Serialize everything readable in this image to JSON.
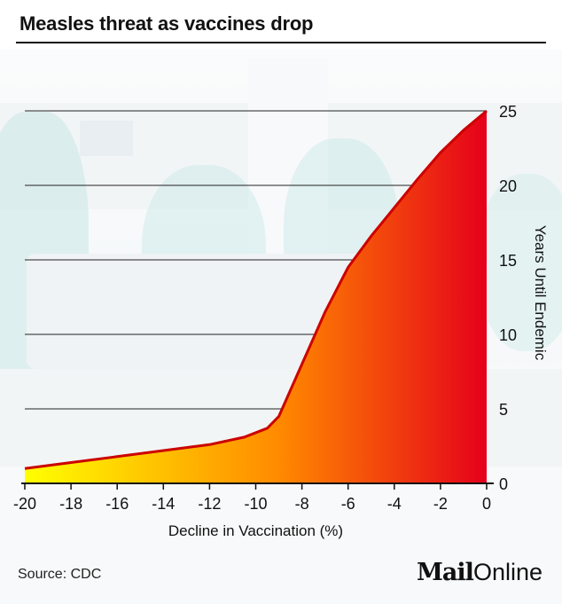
{
  "title": "Measles threat as vaccines drop",
  "source": "Source: CDC",
  "brand": {
    "mail": "Mail",
    "online": "Online"
  },
  "colors": {
    "gradient_start": "#ffff00",
    "gradient_mid": "#ff8a00",
    "gradient_end": "#e5001a",
    "line": "#cc0000"
  },
  "chart_data": {
    "type": "area",
    "xlabel": "Decline in Vaccination (%)",
    "ylabel": "Years Until Endemic",
    "xlim": [
      -20,
      0
    ],
    "ylim": [
      0,
      25
    ],
    "x_ticks": [
      -20,
      -18,
      -16,
      -14,
      -12,
      -10,
      -8,
      -6,
      -4,
      -2,
      0
    ],
    "y_ticks": [
      0,
      5,
      10,
      15,
      20,
      25
    ],
    "y_axis_side": "right",
    "grid": "horizontal",
    "x": [
      -20,
      -18,
      -16,
      -14,
      -12,
      -10.5,
      -9.5,
      -9,
      -8,
      -7,
      -6,
      -5,
      -4,
      -3,
      -2,
      -1,
      0
    ],
    "y": [
      1.0,
      1.4,
      1.8,
      2.2,
      2.6,
      3.1,
      3.7,
      4.5,
      8.0,
      11.5,
      14.5,
      16.6,
      18.5,
      20.4,
      22.2,
      23.7,
      25.0
    ]
  }
}
